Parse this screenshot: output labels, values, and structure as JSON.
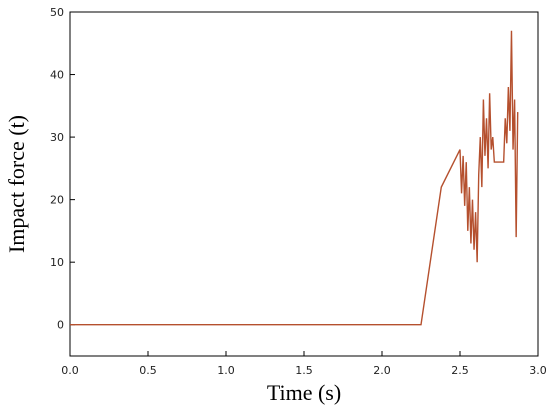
{
  "chart_data": {
    "type": "line",
    "xlabel": "Time (s)",
    "ylabel": "Impact force (t)",
    "x": [
      0,
      2.25,
      2.38,
      2.5,
      2.51,
      2.52,
      2.53,
      2.54,
      2.55,
      2.56,
      2.57,
      2.58,
      2.59,
      2.6,
      2.61,
      2.62,
      2.63,
      2.64,
      2.65,
      2.66,
      2.67,
      2.68,
      2.69,
      2.7,
      2.71,
      2.72,
      2.75,
      2.78,
      2.79,
      2.8,
      2.81,
      2.82,
      2.83,
      2.84,
      2.85,
      2.86,
      2.87
    ],
    "values": [
      0,
      0,
      22,
      28,
      21,
      27,
      19,
      26,
      15,
      22,
      13,
      20,
      12,
      18,
      10,
      24,
      30,
      22,
      36,
      27,
      33,
      25,
      37,
      28,
      30,
      26,
      26,
      26,
      33,
      29,
      38,
      31,
      47,
      28,
      36,
      14,
      34
    ],
    "color": "#b5502e",
    "xlim": [
      0,
      3.0
    ],
    "xticks": [
      {
        "value": 0,
        "label": "0.0"
      },
      0.5,
      {
        "value": 1,
        "label": "1.0"
      },
      1.5,
      {
        "value": 2,
        "label": "2.0"
      },
      2.5,
      {
        "value": 3,
        "label": "3.0"
      }
    ],
    "ylim": [
      -5,
      50
    ],
    "yticks": [
      0,
      10,
      20,
      30,
      40,
      50
    ],
    "grid": false
  }
}
